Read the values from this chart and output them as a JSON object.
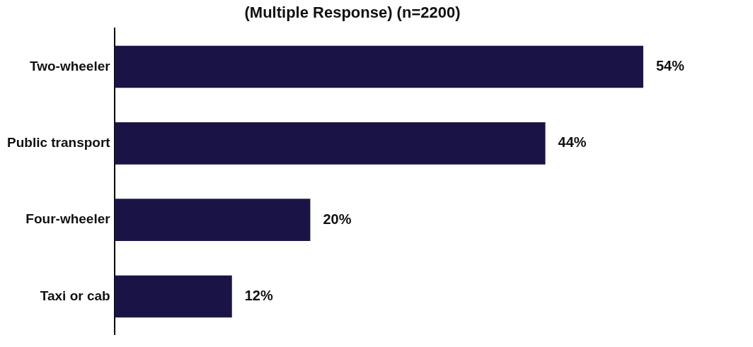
{
  "chart_data": {
    "type": "bar",
    "orientation": "horizontal",
    "title": "(Multiple Response) (n=2200)",
    "categories": [
      "Two-wheeler",
      "Public transport",
      "Four-wheeler",
      "Taxi or cab"
    ],
    "values": [
      54,
      44,
      20,
      12
    ],
    "value_labels": [
      "54%",
      "44%",
      "20%",
      "12%"
    ],
    "color": "#1a1446",
    "legend": false
  }
}
